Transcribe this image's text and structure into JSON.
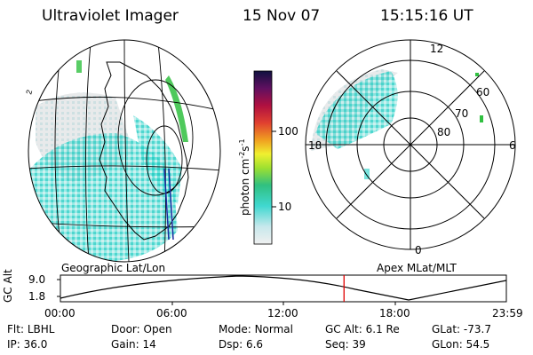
{
  "header": {
    "instrument": "Ultraviolet Imager",
    "date": "15 Nov 07",
    "time": "15:15:16 UT"
  },
  "colorbar": {
    "unit_label": "photon cm",
    "unit_exp1": "-2",
    "unit_s": "s",
    "unit_exp2": "-1",
    "ticks": [
      "100",
      "10"
    ]
  },
  "polar": {
    "mlt_labels": {
      "top": "12",
      "left": "18",
      "right": "6",
      "bottom": "0"
    },
    "lat_labels": [
      "60",
      "70",
      "80"
    ]
  },
  "panel_titles": {
    "geo": "Geographic Lat/Lon",
    "apex": "Apex MLat/MLT"
  },
  "altitude_plot": {
    "ylabel": "GC Alt",
    "yticks": [
      "9.0",
      "1.8"
    ],
    "xticks": [
      "00:00",
      "06:00",
      "12:00",
      "18:00",
      "23:59"
    ],
    "current_time_frac": 0.636,
    "marker_color": "#e00000"
  },
  "footer": {
    "row1": [
      {
        "label": "Flt:",
        "value": "LBHL"
      },
      {
        "label": "Door:",
        "value": "Open"
      },
      {
        "label": "Mode:",
        "value": "Normal"
      },
      {
        "label": "GC Alt:",
        "value": "6.1 Re"
      },
      {
        "label": "GLat:",
        "value": "-73.7"
      }
    ],
    "row2": [
      {
        "label": "IP:",
        "value": "36.0"
      },
      {
        "label": "Gain:",
        "value": "14"
      },
      {
        "label": "Dsp:",
        "value": "6.6"
      },
      {
        "label": "Seq:",
        "value": "39"
      },
      {
        "label": "GLon:",
        "value": "54.5"
      }
    ]
  },
  "colors": {
    "aurora_cyan": "#40d8d0",
    "aurora_gray": "#c8ccd0",
    "aurora_green": "#30c040",
    "trace_blue": "#1a2aa0"
  }
}
